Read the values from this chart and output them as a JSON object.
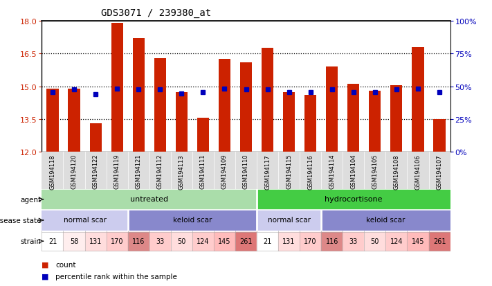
{
  "title": "GDS3071 / 239380_at",
  "samples": [
    "GSM194118",
    "GSM194120",
    "GSM194122",
    "GSM194119",
    "GSM194121",
    "GSM194112",
    "GSM194113",
    "GSM194111",
    "GSM194109",
    "GSM194110",
    "GSM194117",
    "GSM194115",
    "GSM194116",
    "GSM194114",
    "GSM194104",
    "GSM194105",
    "GSM194108",
    "GSM194106",
    "GSM194107"
  ],
  "bar_heights": [
    14.9,
    14.9,
    13.3,
    17.9,
    17.2,
    16.3,
    14.75,
    13.55,
    16.25,
    16.1,
    16.75,
    14.75,
    14.6,
    15.9,
    15.1,
    14.8,
    15.05,
    16.8,
    13.5
  ],
  "percentile_values": [
    14.75,
    14.85,
    14.65,
    14.9,
    14.85,
    14.85,
    14.68,
    14.73,
    14.9,
    14.85,
    14.85,
    14.73,
    14.73,
    14.85,
    14.73,
    14.73,
    14.85,
    14.9,
    14.73
  ],
  "ymin": 12,
  "ymax": 18,
  "yticks": [
    12,
    13.5,
    15,
    16.5,
    18
  ],
  "right_ytick_labels": [
    "0%",
    "25%",
    "50%",
    "75%",
    "100%"
  ],
  "bar_color": "#cc2200",
  "percentile_color": "#0000bb",
  "left_tick_color": "#cc2200",
  "right_tick_color": "#0000bb",
  "agent_groups": [
    {
      "text": "untreated",
      "start": 0,
      "end": 9,
      "color": "#aaddaa"
    },
    {
      "text": "hydrocortisone",
      "start": 10,
      "end": 18,
      "color": "#44cc44"
    }
  ],
  "disease_groups": [
    {
      "text": "normal scar",
      "start": 0,
      "end": 3,
      "color": "#ccccee"
    },
    {
      "text": "keloid scar",
      "start": 4,
      "end": 9,
      "color": "#8888cc"
    },
    {
      "text": "normal scar",
      "start": 10,
      "end": 12,
      "color": "#ccccee"
    },
    {
      "text": "keloid scar",
      "start": 13,
      "end": 18,
      "color": "#8888cc"
    }
  ],
  "strain_values": [
    21,
    58,
    131,
    170,
    116,
    33,
    50,
    124,
    145,
    261,
    21,
    131,
    170,
    116,
    33,
    50,
    124,
    145,
    261
  ],
  "strain_colors": [
    "#ffffff",
    "#ffeeee",
    "#ffdddd",
    "#ffcccc",
    "#dd8888",
    "#ffcccc",
    "#ffdddd",
    "#ffcccc",
    "#ffbbbb",
    "#dd7777",
    "#ffffff",
    "#ffdddd",
    "#ffcccc",
    "#dd8888",
    "#ffcccc",
    "#ffdddd",
    "#ffcccc",
    "#ffbbbb",
    "#dd7777"
  ],
  "legend_items": [
    {
      "color": "#cc2200",
      "label": "count"
    },
    {
      "color": "#0000bb",
      "label": "percentile rank within the sample"
    }
  ]
}
